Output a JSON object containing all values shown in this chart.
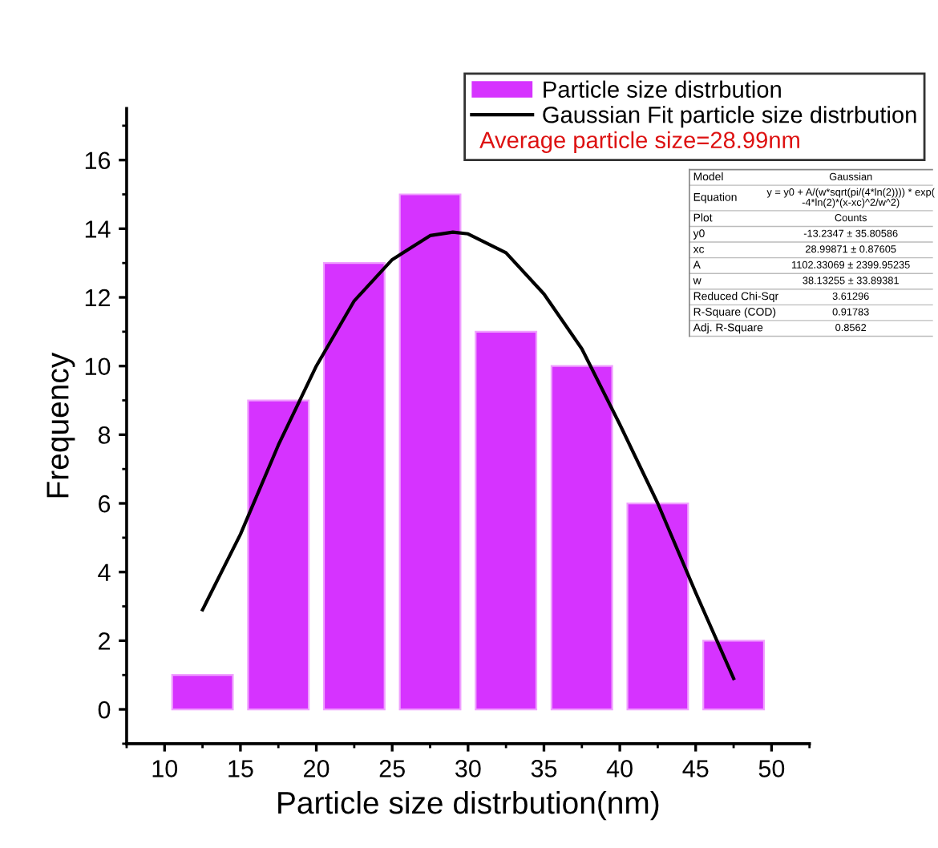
{
  "chart_data": {
    "type": "histogram",
    "xlabel": "Particle size distrbution(nm)",
    "ylabel": "Frequency",
    "bins": [
      10,
      15,
      20,
      25,
      30,
      35,
      40,
      45,
      50
    ],
    "series": [
      {
        "name": "Particle size distrbution",
        "color": "#d633ff",
        "values": [
          1,
          9,
          13,
          15,
          11,
          10,
          6,
          2
        ]
      },
      {
        "name": "Gaussian Fit particle size distrbution",
        "type": "line",
        "color": "#000000",
        "x": [
          12.5,
          15,
          17.5,
          20,
          22.5,
          25,
          27.5,
          29,
          30,
          32.5,
          35,
          37.5,
          40,
          42.5,
          45,
          47.5
        ],
        "values": [
          2.9,
          5.1,
          7.7,
          10.0,
          11.9,
          13.1,
          13.8,
          13.9,
          13.85,
          13.3,
          12.1,
          10.5,
          8.3,
          6.0,
          3.4,
          0.9
        ]
      }
    ],
    "annotations": [
      "Average particle size=28.99nm",
      "Model",
      "Gaussian",
      "Equation",
      "y = y0 + A/(w*sqrt(pi/(4*ln(2)))) * exp(\n-4*ln(2)*(x-xc)^2/w^2)",
      "Plot",
      "Counts",
      "y0",
      "-13.2347 ± 35.80586",
      "xc",
      "28.99871 ± 0.87605",
      "A",
      "1102.33069 ± 2399.95235",
      "w",
      "38.13255 ± 33.89381",
      "Reduced Chi-Sqr",
      "3.61296",
      "R-Square (COD)",
      "0.91783",
      "Adj. R-Square",
      "0.8562"
    ],
    "xlim": [
      7.5,
      52.5
    ],
    "ylim": [
      -1,
      17.5
    ],
    "xticks": [
      10,
      15,
      20,
      25,
      30,
      35,
      40,
      45,
      50
    ],
    "yticks": [
      0,
      2,
      4,
      6,
      8,
      10,
      12,
      14,
      16
    ],
    "legend": "top right",
    "grid": false
  }
}
